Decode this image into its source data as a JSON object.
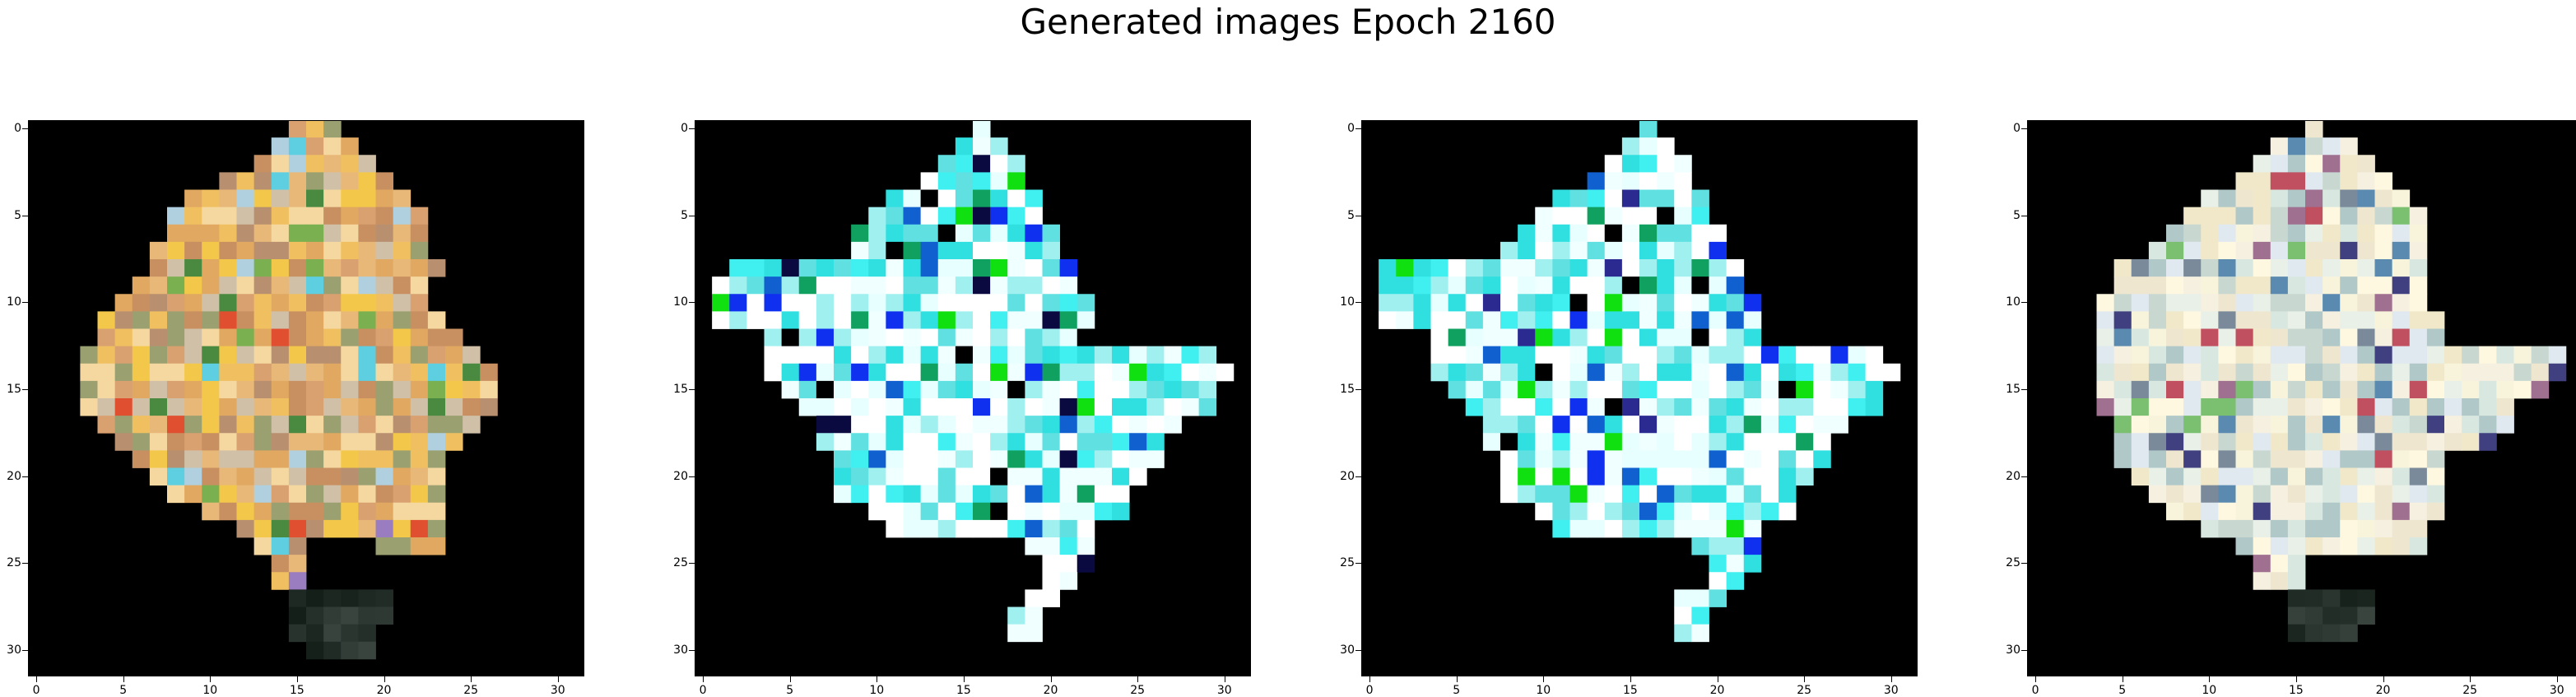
{
  "title": "Generated images Epoch 2160",
  "chart_data": [
    {
      "type": "heatmap",
      "extent": [
        0,
        32,
        0,
        32
      ],
      "xticks": [
        0,
        5,
        10,
        15,
        20,
        25,
        30
      ],
      "yticks": [
        0,
        5,
        10,
        15,
        20,
        25,
        30
      ],
      "background": "#000000",
      "palette": [
        "#f0c060",
        "#e8b878",
        "#d9a070",
        "#f5d8a0",
        "#c89060",
        "#f3c84a",
        "#e0a860",
        "#b89070",
        "#9aa070",
        "#d0c0a8"
      ],
      "accents": [
        "#7ab050",
        "#5dcfe0",
        "#9a7cc0",
        "#4a8a40",
        "#b0d0e0",
        "#e05030"
      ],
      "blob": [
        [
          0,
          15,
          17
        ],
        [
          1,
          14,
          18
        ],
        [
          2,
          13,
          19
        ],
        [
          3,
          11,
          20
        ],
        [
          4,
          9,
          21
        ],
        [
          5,
          8,
          22
        ],
        [
          6,
          8,
          22
        ],
        [
          7,
          7,
          22
        ],
        [
          8,
          7,
          23
        ],
        [
          9,
          6,
          22
        ],
        [
          10,
          5,
          22
        ],
        [
          11,
          4,
          23
        ],
        [
          12,
          4,
          24
        ],
        [
          13,
          3,
          25
        ],
        [
          14,
          3,
          26
        ],
        [
          15,
          3,
          26
        ],
        [
          16,
          3,
          26
        ],
        [
          17,
          4,
          25
        ],
        [
          18,
          5,
          24
        ],
        [
          19,
          6,
          23
        ],
        [
          20,
          7,
          23
        ],
        [
          21,
          8,
          23
        ],
        [
          22,
          10,
          23
        ],
        [
          23,
          12,
          23
        ],
        [
          24,
          13,
          23
        ],
        [
          25,
          14,
          16
        ],
        [
          26,
          14,
          16
        ]
      ],
      "holes": [
        [
          24,
          16,
          19
        ],
        [
          25,
          16,
          19
        ],
        [
          26,
          16,
          19
        ]
      ],
      "dark_tail": [
        [
          27,
          15,
          20
        ],
        [
          28,
          15,
          20
        ],
        [
          29,
          15,
          19
        ],
        [
          30,
          16,
          19
        ]
      ],
      "seed": 11
    },
    {
      "type": "heatmap",
      "extent": [
        0,
        32,
        0,
        32
      ],
      "xticks": [
        0,
        5,
        10,
        15,
        20,
        25,
        30
      ],
      "yticks": [
        0,
        5,
        10,
        15,
        20,
        25,
        30
      ],
      "background": "#000000",
      "palette": [
        "#ffffff",
        "#ffffff",
        "#e8ffff",
        "#40f0f0",
        "#30e0e0",
        "#a0f0f0",
        "#f0ffff",
        "#60e0e0"
      ],
      "accents": [
        "#1030f0",
        "#10e010",
        "#1060d0",
        "#10a060",
        "#0a0a40",
        "#000000"
      ],
      "blob": [
        [
          0,
          16,
          16
        ],
        [
          1,
          15,
          17
        ],
        [
          2,
          14,
          18
        ],
        [
          3,
          13,
          18
        ],
        [
          4,
          11,
          19
        ],
        [
          5,
          10,
          19
        ],
        [
          6,
          9,
          20
        ],
        [
          7,
          8,
          20
        ],
        [
          8,
          1,
          21
        ],
        [
          9,
          1,
          21
        ],
        [
          10,
          1,
          22
        ],
        [
          11,
          1,
          22
        ],
        [
          12,
          4,
          22
        ],
        [
          13,
          4,
          29
        ],
        [
          14,
          4,
          30
        ],
        [
          15,
          5,
          29
        ],
        [
          16,
          6,
          29
        ],
        [
          17,
          7,
          27
        ],
        [
          18,
          7,
          26
        ],
        [
          19,
          8,
          26
        ],
        [
          20,
          8,
          25
        ],
        [
          21,
          8,
          24
        ],
        [
          22,
          10,
          24
        ],
        [
          23,
          11,
          22
        ],
        [
          24,
          19,
          22
        ],
        [
          25,
          20,
          22
        ],
        [
          26,
          20,
          21
        ],
        [
          27,
          19,
          20
        ],
        [
          28,
          18,
          19
        ],
        [
          29,
          18,
          19
        ]
      ],
      "holes": [
        [
          25,
          14,
          19
        ],
        [
          26,
          13,
          19
        ]
      ],
      "dark_tail": [],
      "seed": 23
    },
    {
      "type": "heatmap",
      "extent": [
        0,
        32,
        0,
        32
      ],
      "xticks": [
        0,
        5,
        10,
        15,
        20,
        25,
        30
      ],
      "yticks": [
        0,
        5,
        10,
        15,
        20,
        25,
        30
      ],
      "background": "#000000",
      "palette": [
        "#ffffff",
        "#ffffff",
        "#e8ffff",
        "#40f0f0",
        "#30e0e0",
        "#a0f0f0",
        "#f0ffff",
        "#60e0e0"
      ],
      "accents": [
        "#1030f0",
        "#10e010",
        "#1060d0",
        "#10a060",
        "#2a2a90",
        "#000000"
      ],
      "blob": [
        [
          0,
          16,
          16
        ],
        [
          1,
          15,
          17
        ],
        [
          2,
          14,
          18
        ],
        [
          3,
          13,
          18
        ],
        [
          4,
          11,
          19
        ],
        [
          5,
          10,
          19
        ],
        [
          6,
          9,
          20
        ],
        [
          7,
          8,
          20
        ],
        [
          8,
          1,
          21
        ],
        [
          9,
          1,
          21
        ],
        [
          10,
          1,
          22
        ],
        [
          11,
          1,
          22
        ],
        [
          12,
          4,
          22
        ],
        [
          13,
          4,
          29
        ],
        [
          14,
          4,
          30
        ],
        [
          15,
          5,
          29
        ],
        [
          16,
          6,
          29
        ],
        [
          17,
          7,
          27
        ],
        [
          18,
          7,
          26
        ],
        [
          19,
          8,
          26
        ],
        [
          20,
          8,
          25
        ],
        [
          21,
          8,
          24
        ],
        [
          22,
          10,
          24
        ],
        [
          23,
          11,
          22
        ],
        [
          24,
          19,
          22
        ],
        [
          25,
          20,
          22
        ],
        [
          26,
          20,
          21
        ],
        [
          27,
          18,
          20
        ],
        [
          28,
          18,
          19
        ],
        [
          29,
          18,
          19
        ]
      ],
      "holes": [
        [
          25,
          14,
          19
        ],
        [
          26,
          13,
          19
        ]
      ],
      "dark_tail": [],
      "seed": 29
    },
    {
      "type": "heatmap",
      "extent": [
        0,
        32,
        0,
        32
      ],
      "xticks": [
        0,
        5,
        10,
        15,
        20,
        25,
        30
      ],
      "yticks": [
        0,
        5,
        10,
        15,
        20,
        25,
        30
      ],
      "background": "#000000",
      "palette": [
        "#f5f0e0",
        "#e8f0e8",
        "#f8f4dc",
        "#d8e8e0",
        "#fff8e0",
        "#c8d8d0",
        "#efe6d0",
        "#e0e8f0",
        "#b0c8c8",
        "#f0e8c8"
      ],
      "accents": [
        "#7ac070",
        "#5a8ab0",
        "#a07090",
        "#7a8a9a",
        "#c05060",
        "#404080"
      ],
      "blob": [
        [
          0,
          16,
          16
        ],
        [
          1,
          14,
          18
        ],
        [
          2,
          13,
          19
        ],
        [
          3,
          12,
          20
        ],
        [
          4,
          10,
          21
        ],
        [
          5,
          9,
          22
        ],
        [
          6,
          8,
          22
        ],
        [
          7,
          7,
          22
        ],
        [
          8,
          5,
          22
        ],
        [
          9,
          5,
          22
        ],
        [
          10,
          4,
          22
        ],
        [
          11,
          4,
          23
        ],
        [
          12,
          4,
          23
        ],
        [
          13,
          4,
          30
        ],
        [
          14,
          4,
          30
        ],
        [
          15,
          4,
          29
        ],
        [
          16,
          4,
          27
        ],
        [
          17,
          5,
          27
        ],
        [
          18,
          5,
          26
        ],
        [
          19,
          5,
          23
        ],
        [
          20,
          6,
          23
        ],
        [
          21,
          7,
          23
        ],
        [
          22,
          8,
          23
        ],
        [
          23,
          10,
          22
        ],
        [
          24,
          12,
          22
        ],
        [
          25,
          13,
          16
        ],
        [
          26,
          13,
          16
        ]
      ],
      "holes": [
        [
          25,
          16,
          19
        ],
        [
          26,
          16,
          19
        ]
      ],
      "dark_tail": [
        [
          27,
          15,
          19
        ],
        [
          28,
          15,
          19
        ],
        [
          29,
          15,
          18
        ]
      ],
      "seed": 37
    }
  ]
}
